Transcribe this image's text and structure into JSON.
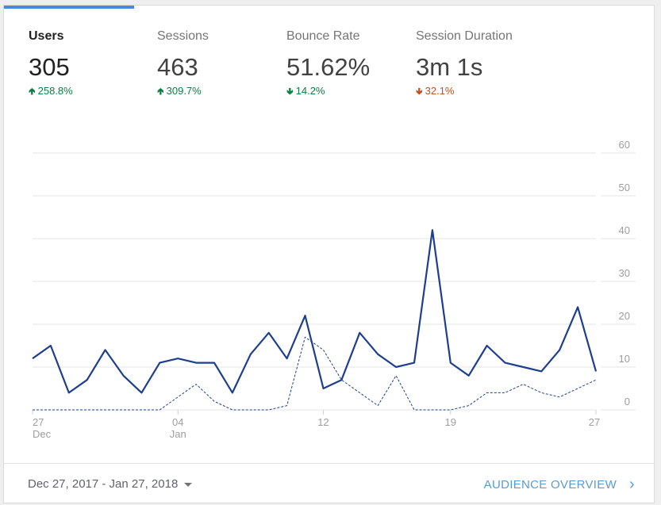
{
  "metrics": [
    {
      "name": "Users",
      "value": "305",
      "delta": "258.8%",
      "direction": "up",
      "color": "#0b8043"
    },
    {
      "name": "Sessions",
      "value": "463",
      "delta": "309.7%",
      "direction": "up",
      "color": "#0b8043"
    },
    {
      "name": "Bounce Rate",
      "value": "51.62%",
      "delta": "14.2%",
      "direction": "down",
      "color": "#0b8043"
    },
    {
      "name": "Session Duration",
      "value": "3m 1s",
      "delta": "32.1%",
      "direction": "down",
      "color": "#c5521c"
    }
  ],
  "footer": {
    "date_range": "Dec 27, 2017 - Jan 27, 2018",
    "audience_link": "AUDIENCE OVERVIEW"
  },
  "colors": {
    "accent": "#4a89dc",
    "line": "#1e3f8f",
    "link": "#5b9bd5"
  },
  "chart_data": {
    "type": "line",
    "y_ticks": [
      "0",
      "10",
      "20",
      "30",
      "40",
      "50",
      "60"
    ],
    "ylim": [
      0,
      60
    ],
    "x_tick_labels": [
      {
        "day": "27",
        "month": "Dec",
        "index": 0
      },
      {
        "day": "04",
        "month": "Jan",
        "index": 8
      },
      {
        "day": "12",
        "month": "",
        "index": 16
      },
      {
        "day": "19",
        "month": "",
        "index": 23
      },
      {
        "day": "27",
        "month": "",
        "index": 31
      }
    ],
    "grid": true,
    "series": [
      {
        "name": "Users",
        "style": "solid",
        "values": [
          12,
          15,
          4,
          7,
          14,
          8,
          4,
          11,
          12,
          11,
          11,
          4,
          13,
          18,
          12,
          22,
          5,
          7,
          18,
          13,
          10,
          11,
          42,
          11,
          8,
          15,
          11,
          10,
          9,
          14,
          24,
          9
        ]
      },
      {
        "name": "",
        "style": "dashed",
        "values": [
          0,
          0,
          0,
          0,
          0,
          0,
          0,
          0,
          3,
          6,
          2,
          0,
          0,
          0,
          1,
          17,
          14,
          7,
          4,
          1,
          8,
          0,
          0,
          0,
          1,
          4,
          4,
          6,
          4,
          3,
          5,
          7
        ]
      }
    ]
  }
}
